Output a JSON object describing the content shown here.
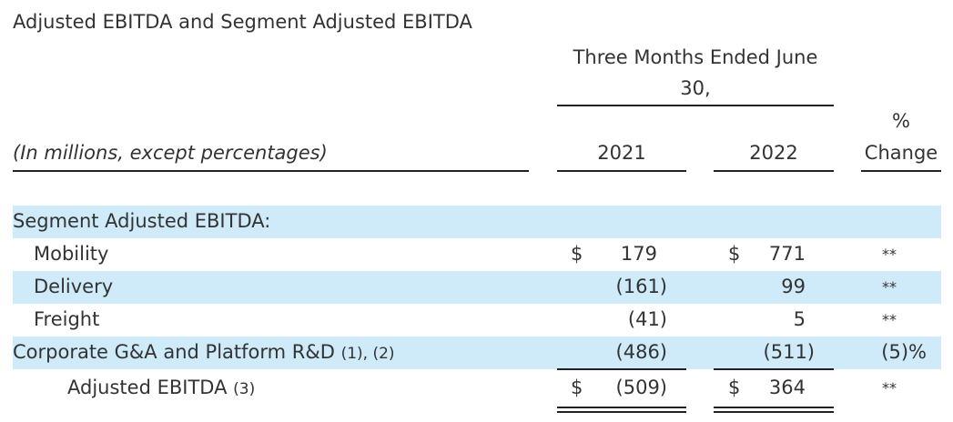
{
  "title": "Adjusted EBITDA and Segment Adjusted EBITDA",
  "period_header": "Three Months Ended June 30,",
  "units_label": "(In millions, except percentages)",
  "columns": {
    "y1": "2021",
    "y2": "2022",
    "pct_line1": "%",
    "pct_line2": "Change"
  },
  "section_label": "Segment Adjusted EBITDA:",
  "rows": [
    {
      "label": "Mobility",
      "ref": "",
      "d1": "$",
      "v1": "179",
      "d2": "$",
      "v2": "771",
      "chg": "**"
    },
    {
      "label": "Delivery",
      "ref": "",
      "d1": "",
      "v1": "(161)",
      "d2": "",
      "v2": "99",
      "chg": "**"
    },
    {
      "label": "Freight",
      "ref": "",
      "d1": "",
      "v1": "(41)",
      "d2": "",
      "v2": "5",
      "chg": "**"
    },
    {
      "label": "Corporate G&A and Platform R&D",
      "ref": "(1), (2)",
      "d1": "",
      "v1": "(486)",
      "d2": "",
      "v2": "(511)",
      "chg": "(5)%"
    },
    {
      "label": "Adjusted EBITDA",
      "ref": "(3)",
      "d1": "$",
      "v1": "(509)",
      "d2": "$",
      "v2": "364",
      "chg": "**"
    }
  ]
}
